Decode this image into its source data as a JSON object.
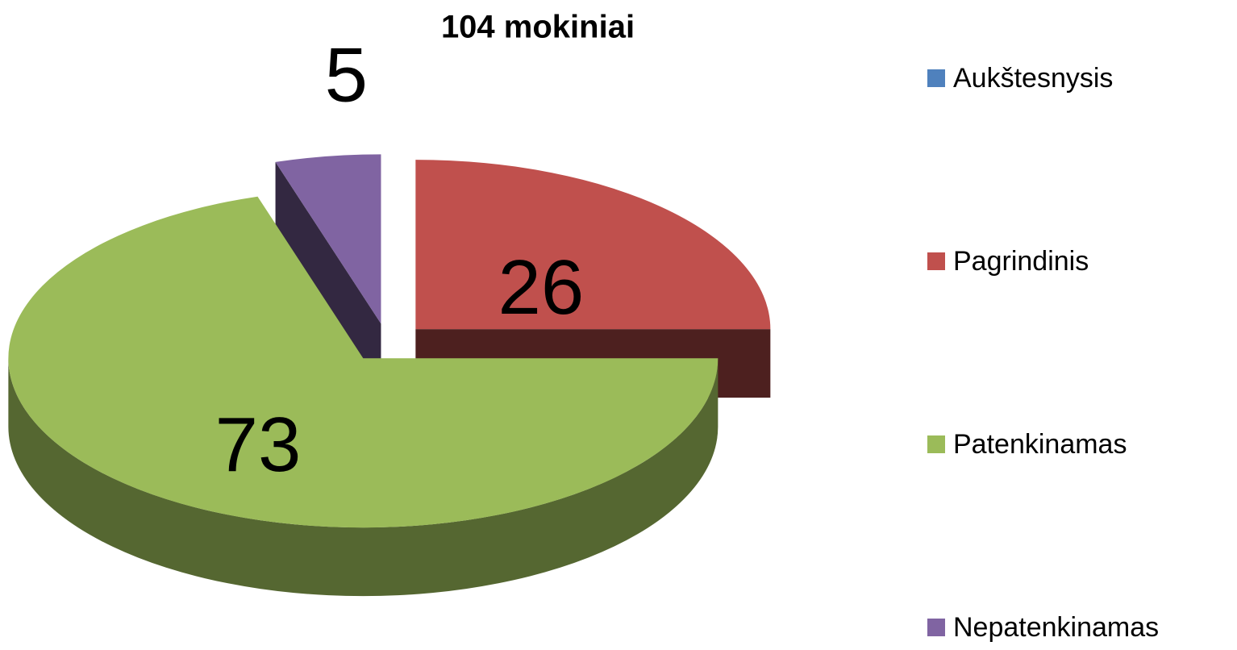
{
  "chart_data": {
    "type": "pie",
    "title": "104 mokiniai",
    "categories": [
      "Aukštesnysis",
      "Pagrindinis",
      "Patenkinamas",
      "Nepatenkinamas"
    ],
    "values": [
      0,
      26,
      73,
      5
    ],
    "colors": [
      "#4f81bd",
      "#c0504d",
      "#9bbb59",
      "#8064a2"
    ],
    "legend": "right"
  }
}
